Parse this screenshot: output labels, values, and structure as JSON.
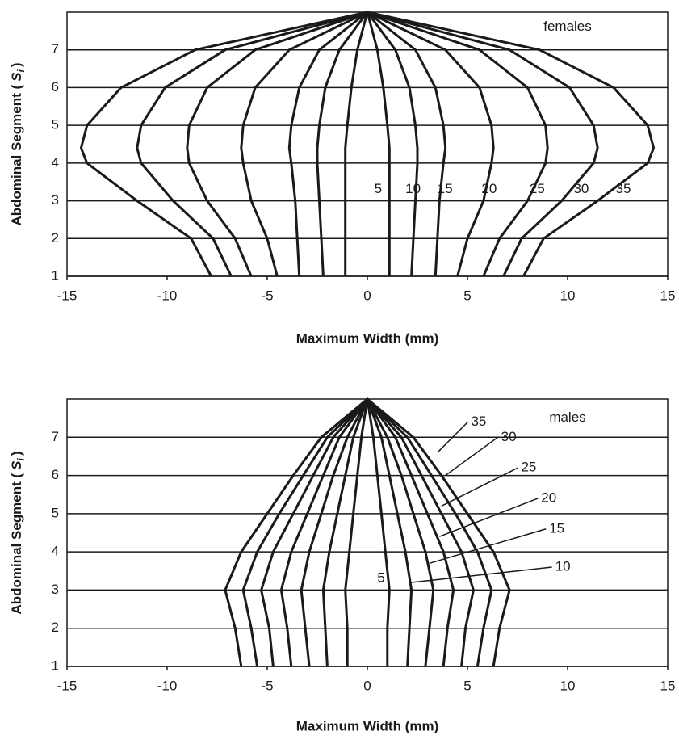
{
  "chart_data": [
    {
      "type": "line",
      "annotation": "females",
      "x_label": "Maximum Width (mm)",
      "y_label": {
        "text": "Abdominal Segment (",
        "symbol": "S",
        "subscript": "i",
        "close": ")"
      },
      "xlim": [
        -15,
        15
      ],
      "xticks": [
        -15,
        -10,
        -5,
        0,
        5,
        10,
        15
      ],
      "ylim": [
        1,
        8
      ],
      "yticks": [
        1,
        2,
        3,
        4,
        5,
        6,
        7
      ],
      "grid": true,
      "series": [
        {
          "name": "5",
          "color": "#1a1a1a",
          "y": [
            1,
            2,
            3,
            4,
            4.4,
            5,
            6,
            7,
            8,
            7,
            6,
            5,
            4.4,
            4,
            3,
            2,
            1
          ],
          "x": [
            -1.1,
            -1.1,
            -1.1,
            -1.1,
            -1.1,
            -1.0,
            -0.8,
            -0.5,
            0,
            0.5,
            0.8,
            1.0,
            1.1,
            1.1,
            1.1,
            1.1,
            1.1
          ]
        },
        {
          "name": "10",
          "color": "#1a1a1a",
          "y": [
            1,
            2,
            3,
            4,
            4.4,
            5,
            6,
            7,
            8,
            7,
            6,
            5,
            4.4,
            4,
            3,
            2,
            1
          ],
          "x": [
            -2.2,
            -2.3,
            -2.4,
            -2.5,
            -2.5,
            -2.4,
            -2.1,
            -1.4,
            0,
            1.4,
            2.1,
            2.4,
            2.5,
            2.5,
            2.4,
            2.3,
            2.2
          ]
        },
        {
          "name": "15",
          "color": "#1a1a1a",
          "y": [
            1,
            2,
            3,
            4,
            4.4,
            5,
            6,
            7,
            8,
            7,
            6,
            5,
            4.4,
            4,
            3,
            2,
            1
          ],
          "x": [
            -3.4,
            -3.5,
            -3.6,
            -3.8,
            -3.9,
            -3.8,
            -3.4,
            -2.4,
            0,
            2.4,
            3.4,
            3.8,
            3.9,
            3.8,
            3.6,
            3.5,
            3.4
          ]
        },
        {
          "name": "20",
          "color": "#1a1a1a",
          "y": [
            1,
            2,
            3,
            4,
            4.4,
            5,
            6,
            7,
            8,
            7,
            6,
            5,
            4.4,
            4,
            3,
            2,
            1
          ],
          "x": [
            -4.5,
            -5.0,
            -5.8,
            -6.2,
            -6.3,
            -6.2,
            -5.6,
            -3.9,
            0,
            3.9,
            5.6,
            6.2,
            6.3,
            6.2,
            5.8,
            5.0,
            4.5
          ]
        },
        {
          "name": "25",
          "color": "#1a1a1a",
          "y": [
            1,
            2,
            3,
            4,
            4.4,
            5,
            6,
            7,
            8,
            7,
            6,
            5,
            4.4,
            4,
            3,
            2,
            1
          ],
          "x": [
            -5.8,
            -6.6,
            -8.0,
            -8.9,
            -9.0,
            -8.9,
            -8.0,
            -5.6,
            0,
            5.6,
            8.0,
            8.9,
            9.0,
            8.9,
            8.0,
            6.6,
            5.8
          ]
        },
        {
          "name": "30",
          "color": "#1a1a1a",
          "y": [
            1,
            2,
            3,
            4,
            4.4,
            5,
            6,
            7,
            8,
            7,
            6,
            5,
            4.4,
            4,
            3,
            2,
            1
          ],
          "x": [
            -6.8,
            -7.7,
            -9.7,
            -11.3,
            -11.5,
            -11.3,
            -10.1,
            -7.1,
            0,
            7.1,
            10.1,
            11.3,
            11.5,
            11.3,
            9.7,
            7.7,
            6.8
          ]
        },
        {
          "name": "35",
          "color": "#1a1a1a",
          "y": [
            1,
            2,
            3,
            4,
            4.4,
            5,
            6,
            7,
            8,
            7,
            6,
            5,
            4.4,
            4,
            3,
            2,
            1
          ],
          "x": [
            -7.8,
            -8.8,
            -11.5,
            -14.0,
            -14.3,
            -14.0,
            -12.3,
            -8.6,
            0,
            8.6,
            12.3,
            14.0,
            14.3,
            14.0,
            11.5,
            8.8,
            7.8
          ]
        }
      ]
    },
    {
      "type": "line",
      "annotation": "males",
      "x_label": "Maximum Width (mm)",
      "y_label": {
        "text": "Abdominal Segment (",
        "symbol": "S",
        "subscript": "i",
        "close": ")"
      },
      "xlim": [
        -15,
        15
      ],
      "xticks": [
        -15,
        -10,
        -5,
        0,
        5,
        10,
        15
      ],
      "ylim": [
        1,
        8
      ],
      "yticks": [
        1,
        2,
        3,
        4,
        5,
        6,
        7
      ],
      "grid": true,
      "series": [
        {
          "name": "5",
          "color": "#1a1a1a",
          "y": [
            1,
            2,
            3,
            4,
            5,
            6,
            7,
            8,
            7,
            6,
            5,
            4,
            3,
            2,
            1
          ],
          "x": [
            -1.0,
            -1.0,
            -1.1,
            -0.9,
            -0.7,
            -0.5,
            -0.3,
            0,
            0.3,
            0.5,
            0.7,
            0.9,
            1.1,
            1.0,
            1.0
          ]
        },
        {
          "name": "10",
          "color": "#1a1a1a",
          "y": [
            1,
            2,
            3,
            4,
            5,
            6,
            7,
            8,
            7,
            6,
            5,
            4,
            3,
            2,
            1
          ],
          "x": [
            -2.0,
            -2.1,
            -2.2,
            -1.9,
            -1.5,
            -1.1,
            -0.7,
            0,
            0.7,
            1.1,
            1.5,
            1.9,
            2.2,
            2.1,
            2.0
          ]
        },
        {
          "name": "15",
          "color": "#1a1a1a",
          "y": [
            1,
            2,
            3,
            4,
            5,
            6,
            7,
            8,
            7,
            6,
            5,
            4,
            3,
            2,
            1
          ],
          "x": [
            -2.9,
            -3.1,
            -3.3,
            -2.9,
            -2.3,
            -1.7,
            -1.0,
            0,
            1.0,
            1.7,
            2.3,
            2.9,
            3.3,
            3.1,
            2.9
          ]
        },
        {
          "name": "20",
          "color": "#1a1a1a",
          "y": [
            1,
            2,
            3,
            4,
            5,
            6,
            7,
            8,
            7,
            6,
            5,
            4,
            3,
            2,
            1
          ],
          "x": [
            -3.8,
            -4.0,
            -4.3,
            -3.8,
            -3.0,
            -2.2,
            -1.4,
            0,
            1.4,
            2.2,
            3.0,
            3.8,
            4.3,
            4.0,
            3.8
          ]
        },
        {
          "name": "25",
          "color": "#1a1a1a",
          "y": [
            1,
            2,
            3,
            4,
            5,
            6,
            7,
            8,
            7,
            6,
            5,
            4,
            3,
            2,
            1
          ],
          "x": [
            -4.7,
            -4.9,
            -5.3,
            -4.7,
            -3.7,
            -2.7,
            -1.7,
            0,
            1.7,
            2.7,
            3.7,
            4.7,
            5.3,
            4.9,
            4.7
          ]
        },
        {
          "name": "30",
          "color": "#1a1a1a",
          "y": [
            1,
            2,
            3,
            4,
            5,
            6,
            7,
            8,
            7,
            6,
            5,
            4,
            3,
            2,
            1
          ],
          "x": [
            -5.5,
            -5.8,
            -6.2,
            -5.5,
            -4.4,
            -3.2,
            -2.0,
            0,
            2.0,
            3.2,
            4.4,
            5.5,
            6.2,
            5.8,
            5.5
          ]
        },
        {
          "name": "35",
          "color": "#1a1a1a",
          "y": [
            1,
            2,
            3,
            4,
            5,
            6,
            7,
            8,
            7,
            6,
            5,
            4,
            3,
            2,
            1
          ],
          "x": [
            -6.3,
            -6.6,
            -7.1,
            -6.3,
            -5.0,
            -3.7,
            -2.3,
            0,
            2.3,
            3.7,
            5.0,
            6.3,
            7.1,
            6.6,
            6.3
          ]
        }
      ]
    }
  ]
}
